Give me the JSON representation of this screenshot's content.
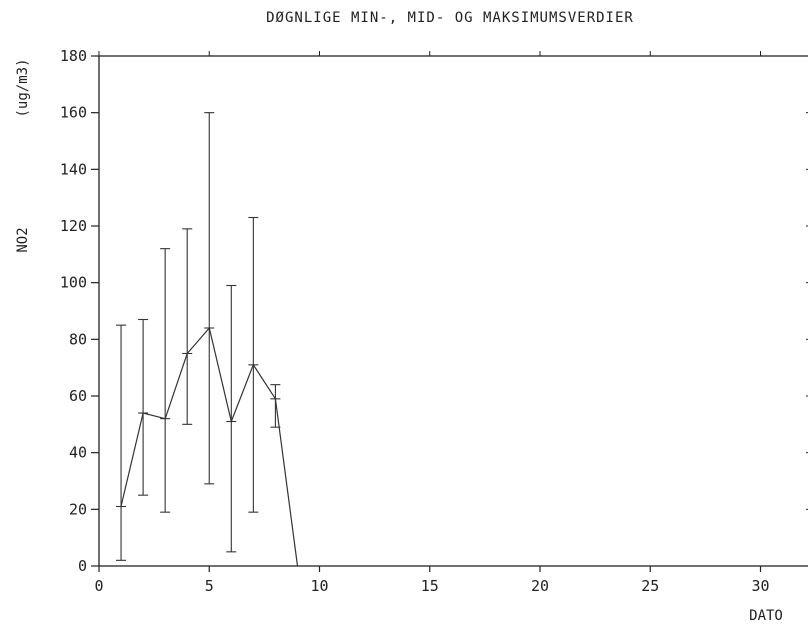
{
  "chart_data": {
    "type": "line",
    "title": "DØGNLIGE MIN-, MID- OG MAKSIMUMSVERDIER",
    "xlabel": "DATO",
    "ylabel_name": "NO2",
    "ylabel_unit": "(ug/m3)",
    "xlim": [
      0,
      32
    ],
    "ylim": [
      0,
      180
    ],
    "x_ticks": [
      0,
      5,
      10,
      15,
      20,
      25,
      30
    ],
    "y_ticks": [
      0,
      20,
      40,
      60,
      80,
      100,
      120,
      140,
      160,
      180
    ],
    "grid": false,
    "series": [
      {
        "x": [
          1,
          2,
          3,
          4,
          5,
          6,
          7,
          8,
          9
        ],
        "mean": [
          21,
          54,
          52,
          75,
          84,
          51,
          71,
          59,
          0
        ],
        "min": [
          2,
          25,
          19,
          50,
          29,
          5,
          19,
          49,
          null
        ],
        "max": [
          85,
          87,
          112,
          119,
          160,
          99,
          123,
          64,
          null
        ]
      }
    ]
  }
}
